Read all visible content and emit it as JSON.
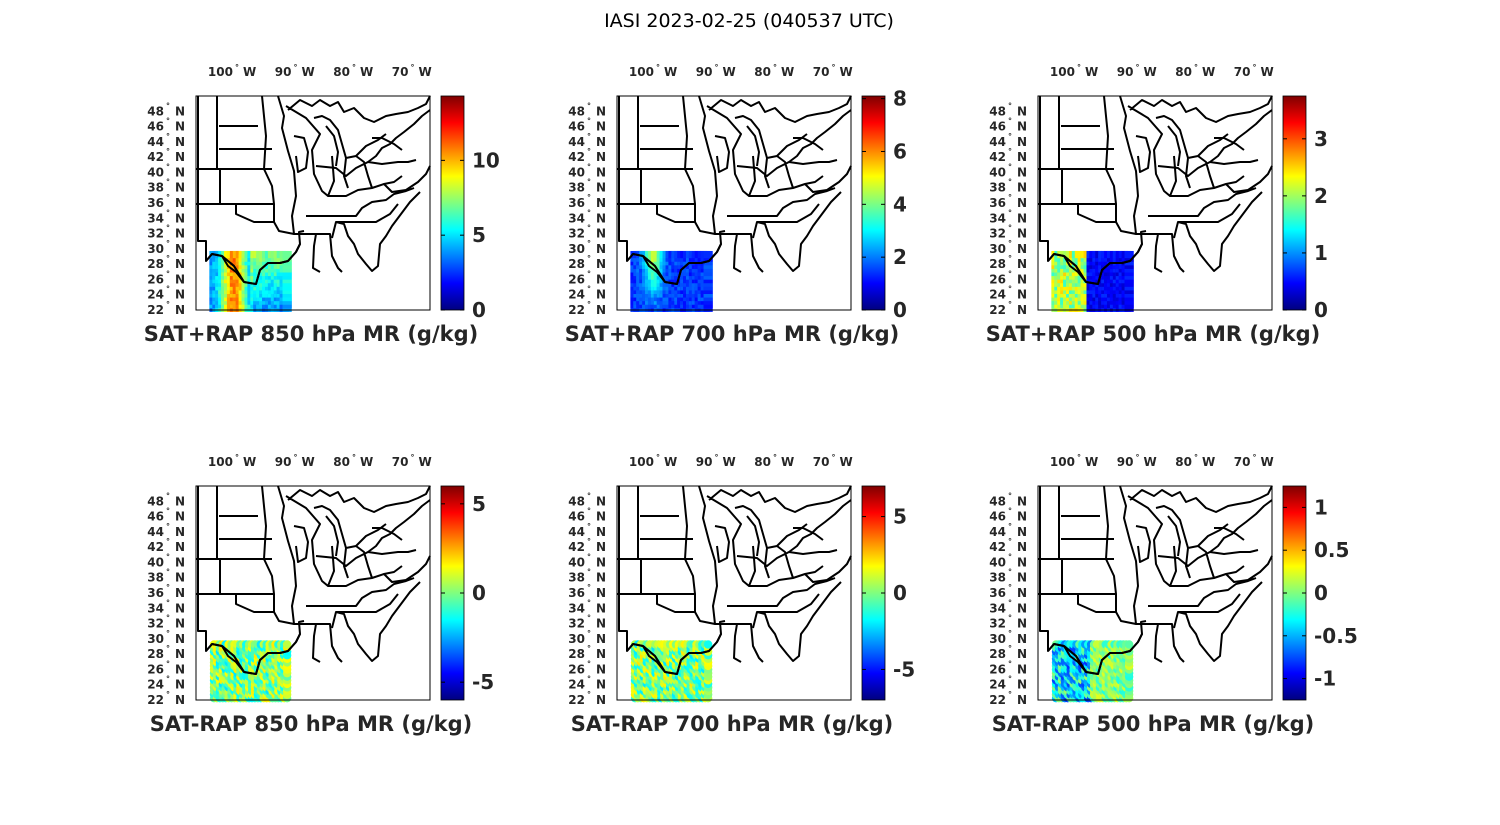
{
  "figure": {
    "title": "IASI 2023-02-25 (040537 UTC)"
  },
  "lon_ticks": [
    {
      "deg": 100,
      "text": "100",
      "suffix": "W"
    },
    {
      "deg": 90,
      "text": "90",
      "suffix": "W"
    },
    {
      "deg": 80,
      "text": "80",
      "suffix": "W"
    },
    {
      "deg": 70,
      "text": "70",
      "suffix": "W"
    }
  ],
  "lat_ticks": [
    {
      "deg": 48,
      "text": "48",
      "suffix": "N"
    },
    {
      "deg": 46,
      "text": "46",
      "suffix": "N"
    },
    {
      "deg": 44,
      "text": "44",
      "suffix": "N"
    },
    {
      "deg": 42,
      "text": "42",
      "suffix": "N"
    },
    {
      "deg": 40,
      "text": "40",
      "suffix": "N"
    },
    {
      "deg": 38,
      "text": "38",
      "suffix": "N"
    },
    {
      "deg": 36,
      "text": "36",
      "suffix": "N"
    },
    {
      "deg": 34,
      "text": "34",
      "suffix": "N"
    },
    {
      "deg": 32,
      "text": "32",
      "suffix": "N"
    },
    {
      "deg": 30,
      "text": "30",
      "suffix": "N"
    },
    {
      "deg": 28,
      "text": "28",
      "suffix": "N"
    },
    {
      "deg": 26,
      "text": "26",
      "suffix": "N"
    },
    {
      "deg": 24,
      "text": "24",
      "suffix": "N"
    },
    {
      "deg": 22,
      "text": "22",
      "suffix": "N"
    }
  ],
  "colors": {
    "colormap": "jet",
    "land_fill": "#ffffff",
    "state_lines": "#000000"
  },
  "chart_data": [
    {
      "type": "heatmap",
      "title": "SAT+RAP 850 hPa MR (g/kg)",
      "clim": [
        0,
        14.3
      ],
      "colorbar_ticks": [
        {
          "v": 0,
          "text": "0"
        },
        {
          "v": 5,
          "text": "5"
        },
        {
          "v": 10,
          "text": "10"
        }
      ],
      "grid": {
        "lon_range": [
          -104,
          -91
        ],
        "lat_range": [
          22,
          29.5
        ]
      }
    },
    {
      "type": "heatmap",
      "title": "SAT+RAP 700 hPa MR (g/kg)",
      "clim": [
        0,
        8.1
      ],
      "colorbar_ticks": [
        {
          "v": 0,
          "text": "0"
        },
        {
          "v": 2,
          "text": "2"
        },
        {
          "v": 4,
          "text": "4"
        },
        {
          "v": 6,
          "text": "6"
        },
        {
          "v": 8,
          "text": "8"
        }
      ],
      "grid": {
        "lon_range": [
          -104,
          -91
        ],
        "lat_range": [
          22,
          29.5
        ]
      }
    },
    {
      "type": "heatmap",
      "title": "SAT+RAP 500 hPa MR (g/kg)",
      "clim": [
        0,
        3.75
      ],
      "colorbar_ticks": [
        {
          "v": 0,
          "text": "0"
        },
        {
          "v": 1,
          "text": "1"
        },
        {
          "v": 2,
          "text": "2"
        },
        {
          "v": 3,
          "text": "3"
        }
      ],
      "grid": {
        "lon_range": [
          -104,
          -91
        ],
        "lat_range": [
          22,
          29.5
        ]
      }
    },
    {
      "type": "heatmap",
      "title": "SAT-RAP 850 hPa MR (g/kg)",
      "clim": [
        -6,
        6
      ],
      "colorbar_ticks": [
        {
          "v": -5,
          "text": "-5"
        },
        {
          "v": 0,
          "text": "0"
        },
        {
          "v": 5,
          "text": "5"
        }
      ],
      "grid": {
        "lon_range": [
          -104,
          -91
        ],
        "lat_range": [
          22,
          29.5
        ]
      }
    },
    {
      "type": "heatmap",
      "title": "SAT-RAP 700 hPa MR (g/kg)",
      "clim": [
        -7,
        7
      ],
      "colorbar_ticks": [
        {
          "v": -5,
          "text": "-5"
        },
        {
          "v": 0,
          "text": "0"
        },
        {
          "v": 5,
          "text": "5"
        }
      ],
      "grid": {
        "lon_range": [
          -104,
          -91
        ],
        "lat_range": [
          22,
          29.5
        ]
      }
    },
    {
      "type": "heatmap",
      "title": "SAT-RAP 500 hPa MR (g/kg)",
      "clim": [
        -1.25,
        1.25
      ],
      "colorbar_ticks": [
        {
          "v": -1,
          "text": "-1"
        },
        {
          "v": -0.5,
          "text": "-0.5"
        },
        {
          "v": 0,
          "text": "0"
        },
        {
          "v": 0.5,
          "text": "0.5"
        },
        {
          "v": 1,
          "text": "1"
        }
      ],
      "grid": {
        "lon_range": [
          -104,
          -91
        ],
        "lat_range": [
          22,
          29.5
        ]
      }
    }
  ]
}
